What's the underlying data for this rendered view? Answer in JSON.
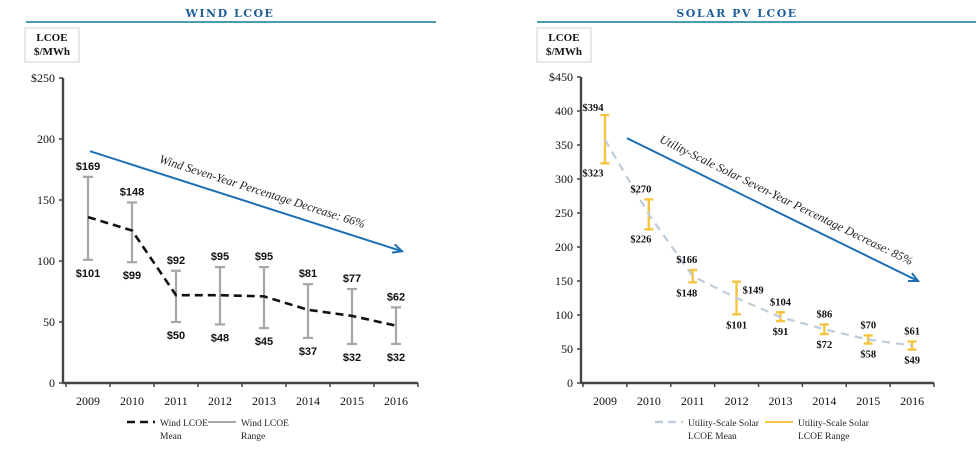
{
  "chart_data": [
    {
      "type": "line",
      "title": "WIND LCOE",
      "ylabel_lines": [
        "LCOE",
        "$/MWh"
      ],
      "xlabel": "",
      "categories": [
        "2009",
        "2010",
        "2011",
        "2012",
        "2013",
        "2014",
        "2015",
        "2016"
      ],
      "ylim": [
        0,
        250
      ],
      "yticks": [
        0,
        50,
        100,
        150,
        200,
        250
      ],
      "ytick_labels": [
        "0",
        "50",
        "100",
        "150",
        "200",
        "$250"
      ],
      "grid": false,
      "series": [
        {
          "name": "Wind LCOE Mean",
          "style": "dashed",
          "color": "#111111",
          "values": [
            136,
            125,
            72,
            72,
            71,
            60,
            55,
            47
          ]
        },
        {
          "name": "Wind LCOE Range",
          "style": "errorbar",
          "color": "#a6a6a6",
          "high": [
            169,
            148,
            92,
            95,
            95,
            81,
            77,
            62
          ],
          "low": [
            101,
            99,
            50,
            48,
            45,
            37,
            32,
            32
          ],
          "high_labels": [
            "$169",
            "$148",
            "$92",
            "$95",
            "$95",
            "$81",
            "$77",
            "$62"
          ],
          "low_labels": [
            "$101",
            "$99",
            "$50",
            "$48",
            "$45",
            "$37",
            "$32",
            "$32"
          ]
        }
      ],
      "annotation": {
        "text": "Wind Seven-Year Percentage Decrease: 66%",
        "color": "#1f6fb5",
        "from": {
          "x": "2009",
          "y": 190
        },
        "to": {
          "x": "2016",
          "y": 108
        }
      },
      "legend": {
        "placement": "bottom",
        "entries": [
          {
            "label_lines": [
              "Wind LCOE",
              "Mean"
            ],
            "style": "dashed",
            "color": "#111111"
          },
          {
            "label_lines": [
              "Wind LCOE",
              "Range"
            ],
            "style": "solid",
            "color": "#a6a6a6"
          }
        ]
      }
    },
    {
      "type": "line",
      "title": "SOLAR PV LCOE",
      "ylabel_lines": [
        "LCOE",
        "$/MWh"
      ],
      "xlabel": "",
      "categories": [
        "2009",
        "2010",
        "2011",
        "2012",
        "2013",
        "2014",
        "2015",
        "2016"
      ],
      "ylim": [
        0,
        450
      ],
      "yticks": [
        0,
        50,
        100,
        150,
        200,
        250,
        300,
        350,
        400,
        450
      ],
      "ytick_labels": [
        "0",
        "50",
        "100",
        "150",
        "200",
        "250",
        "300",
        "350",
        "400",
        "$450"
      ],
      "grid": false,
      "series": [
        {
          "name": "Utility-Scale Solar LCOE Mean",
          "style": "dashed",
          "color": "#bfccd9",
          "values": [
            358,
            248,
            157,
            125,
            97,
            79,
            64,
            55
          ]
        },
        {
          "name": "Utility-Scale Solar LCOE Range",
          "style": "errorbar",
          "color": "#f5c542",
          "high": [
            394,
            270,
            166,
            149,
            104,
            86,
            70,
            61
          ],
          "low": [
            323,
            226,
            148,
            101,
            91,
            72,
            58,
            49
          ],
          "high_labels": [
            "$394",
            "$270",
            "$166",
            "$149",
            "$104",
            "$86",
            "$70",
            "$61"
          ],
          "low_labels": [
            "$323",
            "$226",
            "$148",
            "$101",
            "$91",
            "$72",
            "$58",
            "$49"
          ]
        }
      ],
      "annotation": {
        "text": "Utility-Scale Solar Seven-Year Percentage Decrease: 85%",
        "color": "#1f6fb5",
        "from": {
          "x": "2009",
          "y": 360
        },
        "to": {
          "x": "2016",
          "y": 150
        }
      },
      "legend": {
        "placement": "bottom",
        "entries": [
          {
            "label_lines": [
              "Utility-Scale Solar",
              "LCOE Mean"
            ],
            "style": "dashed",
            "color": "#bfccd9"
          },
          {
            "label_lines": [
              "Utility-Scale Solar",
              "LCOE Range"
            ],
            "style": "solid",
            "color": "#f5c542"
          }
        ]
      }
    }
  ],
  "colors": {
    "title": "#1f5e99",
    "title_rule": "#4a9ab5",
    "axis": "#444444"
  }
}
